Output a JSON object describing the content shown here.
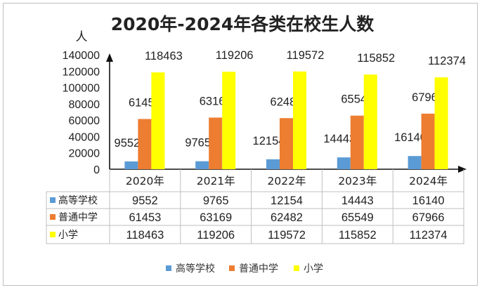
{
  "chart_data": {
    "type": "bar",
    "title": "2020年-2024年各类在校生人数",
    "ylabel": "人",
    "ylim": [
      0,
      140000
    ],
    "yticks": [
      0,
      20000,
      40000,
      60000,
      80000,
      100000,
      120000,
      140000
    ],
    "categories": [
      "2020年",
      "2021年",
      "2022年",
      "2023年",
      "2024年"
    ],
    "series": [
      {
        "name": "高等学校",
        "color": "#5b9bd5",
        "values": [
          9552,
          9765,
          12154,
          14443,
          16140
        ]
      },
      {
        "name": "普通中学",
        "color": "#ed7d31",
        "values": [
          61453,
          63169,
          62482,
          65549,
          67966
        ]
      },
      {
        "name": "小学",
        "color": "#ffff00",
        "values": [
          118463,
          119206,
          119572,
          115852,
          112374
        ]
      }
    ],
    "grid": false,
    "legend": "bottom",
    "data_table": true
  }
}
